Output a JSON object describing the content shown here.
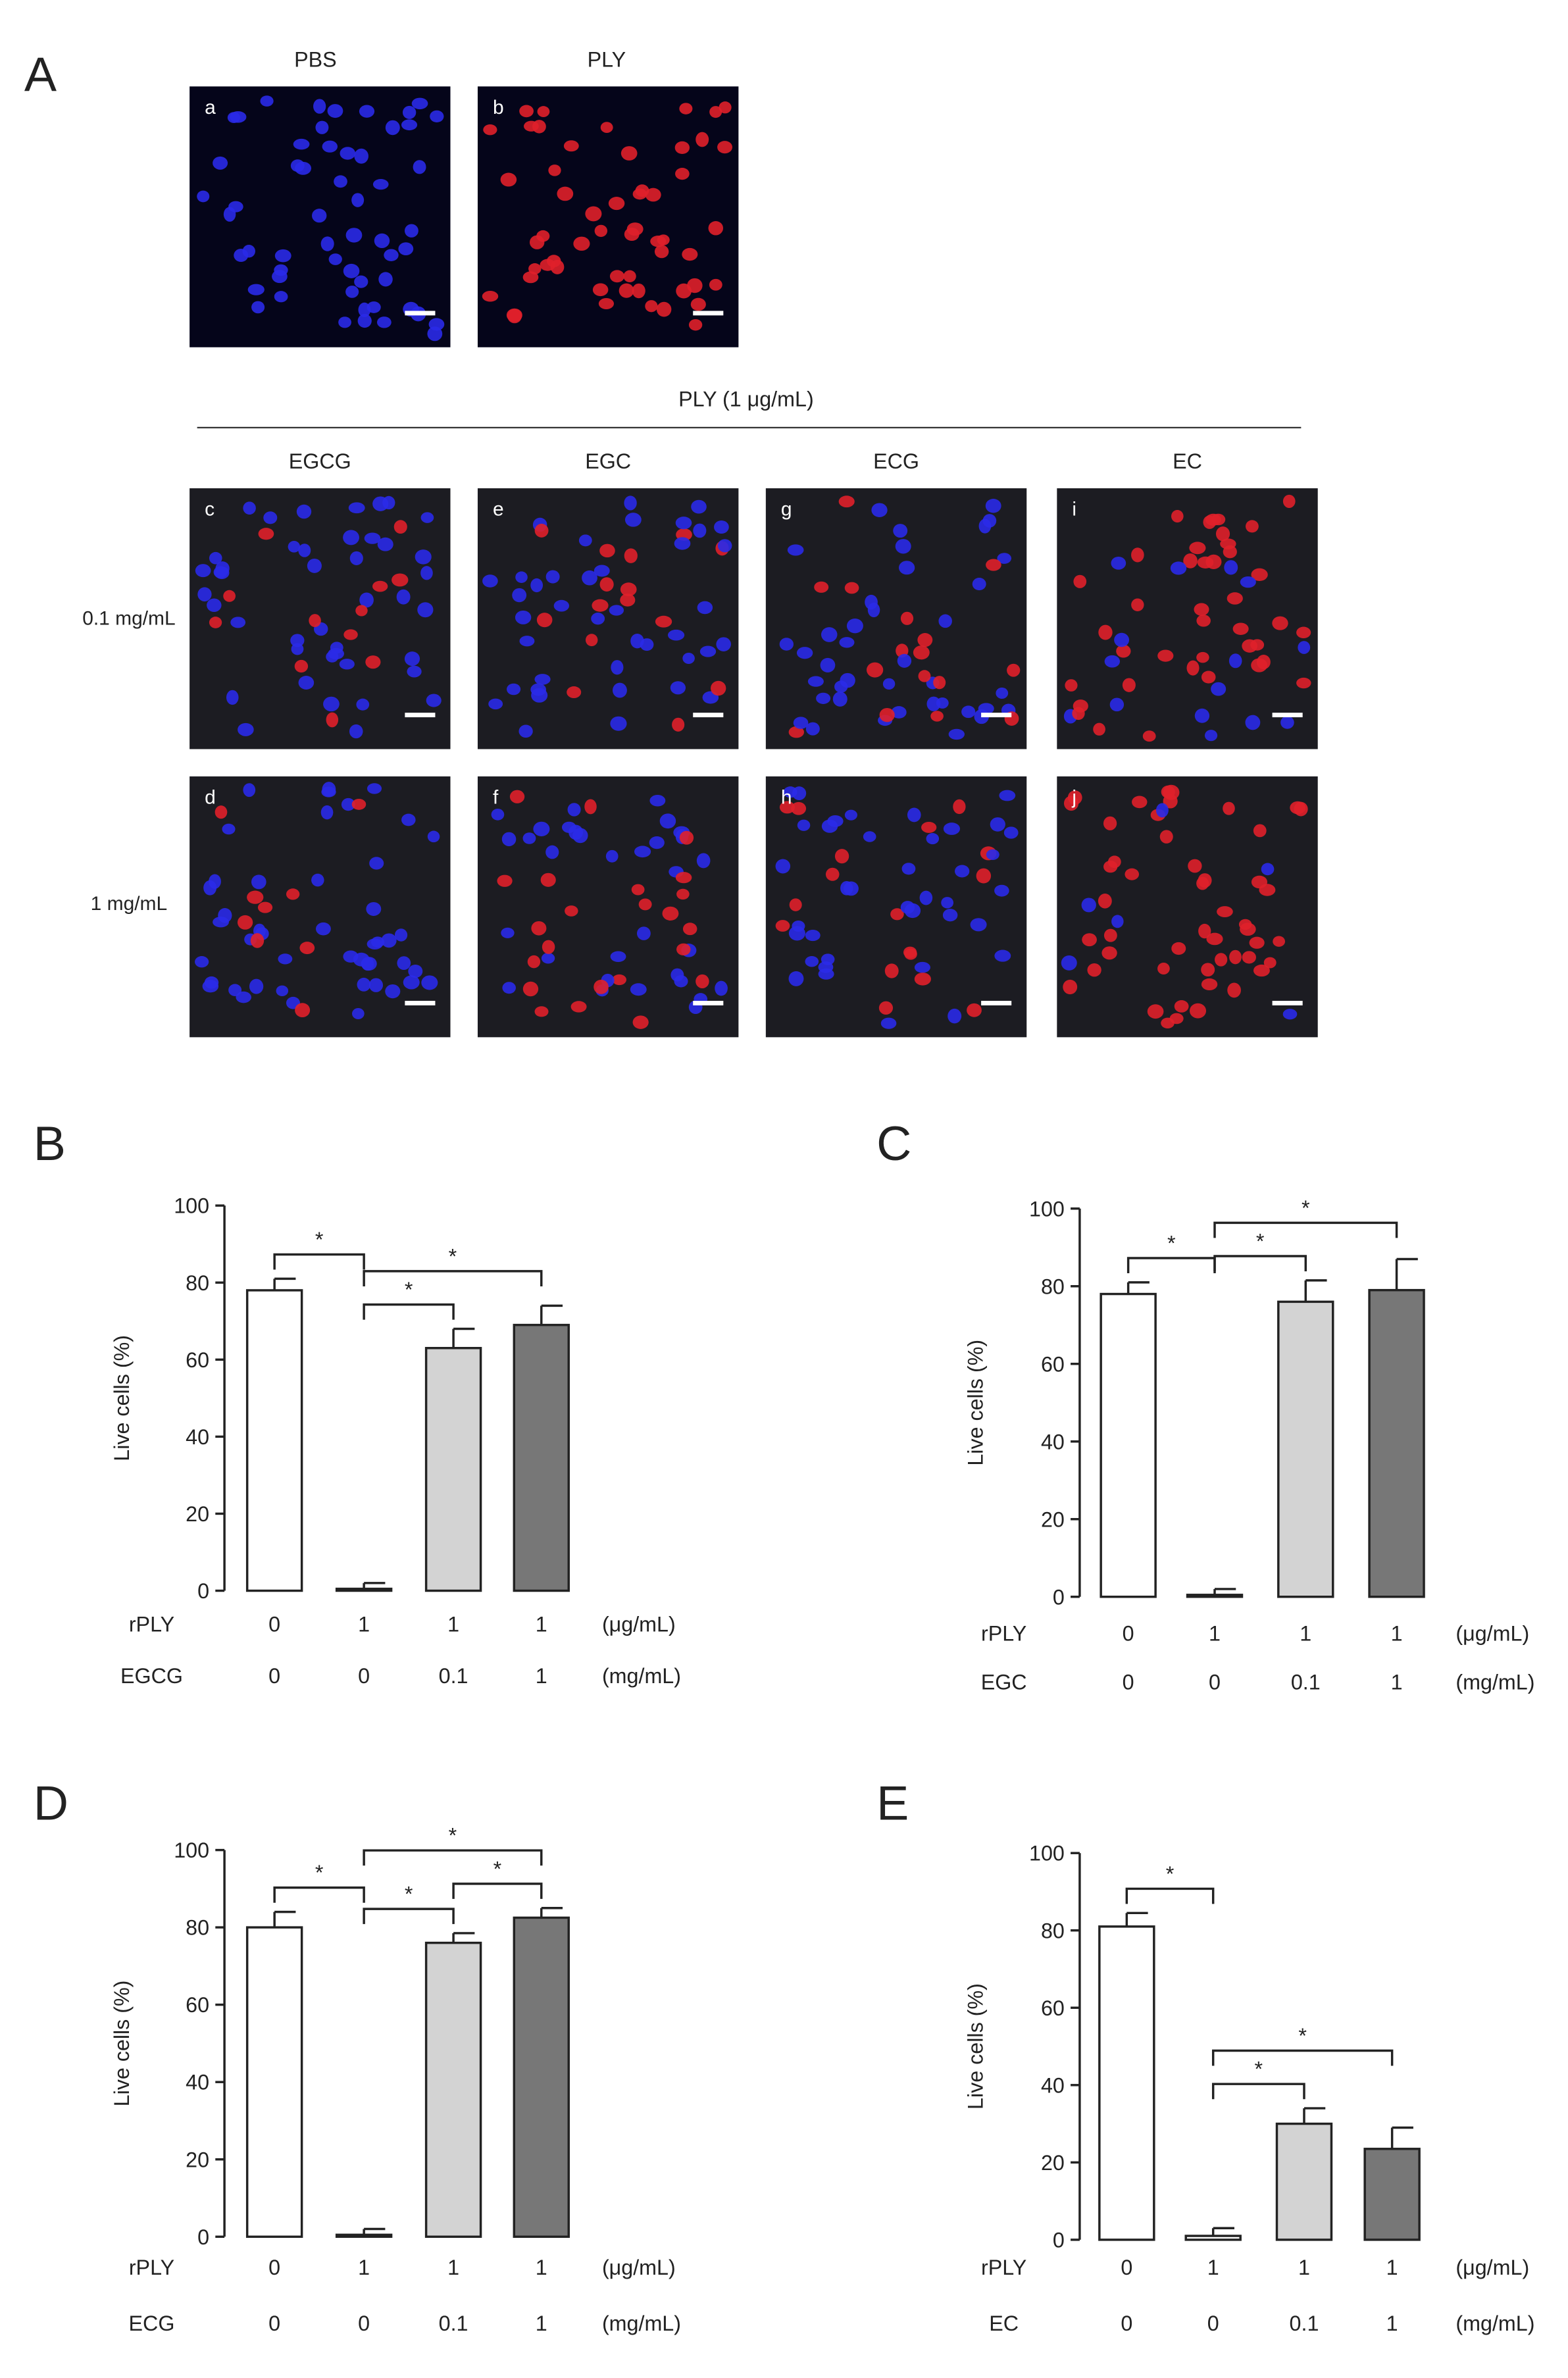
{
  "panel_a": {
    "label": "A",
    "top_headers": [
      "PBS",
      "PLY"
    ],
    "treatment": "PLY (1 μg/mL)",
    "compounds": [
      "EGCG",
      "EGC",
      "ECG",
      "EC"
    ],
    "doses": [
      "0.1 mg/mL",
      "1 mg/mL"
    ],
    "image_labels": [
      "a",
      "b",
      "c",
      "d",
      "e",
      "f",
      "g",
      "h",
      "i",
      "j"
    ]
  },
  "chart_data": [
    {
      "type": "bar",
      "panel_label": "B",
      "y_label": "Live cells (%)",
      "values": [
        78,
        0.5,
        63,
        69
      ],
      "errors": [
        3,
        1.5,
        5,
        5
      ],
      "colors": [
        "#ffffff",
        "#ffffff",
        "#d3d3d3",
        "#777777"
      ],
      "ylim": [
        0,
        100
      ],
      "yticks": [
        0,
        20,
        40,
        60,
        80,
        100
      ],
      "rows": [
        {
          "label": "rPLY",
          "values": [
            "0",
            "1",
            "1",
            "1"
          ],
          "unit": "(μg/mL)"
        },
        {
          "label": "EGCG",
          "values": [
            "0",
            "0",
            "0.1",
            "1"
          ],
          "unit": "(mg/mL)"
        }
      ],
      "significance": [
        {
          "label": "*",
          "bars": [
            0,
            1
          ]
        },
        {
          "label": "*",
          "bars": [
            1,
            2
          ]
        },
        {
          "label": "*",
          "bars": [
            1,
            3
          ]
        }
      ]
    },
    {
      "type": "bar",
      "panel_label": "C",
      "y_label": "Live cells (%)",
      "values": [
        78,
        0.5,
        76,
        79
      ],
      "errors": [
        3,
        1.5,
        5.5,
        8
      ],
      "colors": [
        "#ffffff",
        "#ffffff",
        "#d3d3d3",
        "#777777"
      ],
      "ylim": [
        0,
        100
      ],
      "yticks": [
        0,
        20,
        40,
        60,
        80,
        100
      ],
      "rows": [
        {
          "label": "rPLY",
          "values": [
            "0",
            "1",
            "1",
            "1"
          ],
          "unit": "(μg/mL)"
        },
        {
          "label": "EGC",
          "values": [
            "0",
            "0",
            "0.1",
            "1"
          ],
          "unit": "(mg/mL)"
        }
      ],
      "significance": [
        {
          "label": "*",
          "bars": [
            0,
            1
          ]
        },
        {
          "label": "*",
          "bars": [
            1,
            2
          ]
        },
        {
          "label": "*",
          "bars": [
            1,
            3
          ]
        }
      ]
    },
    {
      "type": "bar",
      "panel_label": "D",
      "y_label": "Live cells (%)",
      "values": [
        80,
        0.5,
        76,
        82.5
      ],
      "errors": [
        4,
        1.5,
        2.5,
        2.5
      ],
      "colors": [
        "#ffffff",
        "#ffffff",
        "#d3d3d3",
        "#777777"
      ],
      "ylim": [
        0,
        100
      ],
      "yticks": [
        0,
        20,
        40,
        60,
        80,
        100
      ],
      "rows": [
        {
          "label": "rPLY",
          "values": [
            "0",
            "1",
            "1",
            "1"
          ],
          "unit": "(μg/mL)"
        },
        {
          "label": "ECG",
          "values": [
            "0",
            "0",
            "0.1",
            "1"
          ],
          "unit": "(mg/mL)"
        }
      ],
      "significance": [
        {
          "label": "*",
          "bars": [
            0,
            1
          ]
        },
        {
          "label": "*",
          "bars": [
            1,
            2
          ]
        },
        {
          "label": "*",
          "bars": [
            1,
            3
          ]
        },
        {
          "label": "*",
          "bars": [
            2,
            3
          ]
        }
      ]
    },
    {
      "type": "bar",
      "panel_label": "E",
      "y_label": "Live cells (%)",
      "values": [
        81,
        1,
        30,
        23.5
      ],
      "errors": [
        3.5,
        2,
        4,
        5.5
      ],
      "colors": [
        "#ffffff",
        "#ffffff",
        "#d3d3d3",
        "#777777"
      ],
      "ylim": [
        0,
        100
      ],
      "yticks": [
        0,
        20,
        40,
        60,
        80,
        100
      ],
      "rows": [
        {
          "label": "rPLY",
          "values": [
            "0",
            "1",
            "1",
            "1"
          ],
          "unit": "(μg/mL)"
        },
        {
          "label": "EC",
          "values": [
            "0",
            "0",
            "0.1",
            "1"
          ],
          "unit": "(mg/mL)"
        }
      ],
      "significance": [
        {
          "label": "*",
          "bars": [
            0,
            1
          ]
        },
        {
          "label": "*",
          "bars": [
            1,
            2
          ]
        },
        {
          "label": "*",
          "bars": [
            1,
            3
          ]
        }
      ]
    }
  ]
}
